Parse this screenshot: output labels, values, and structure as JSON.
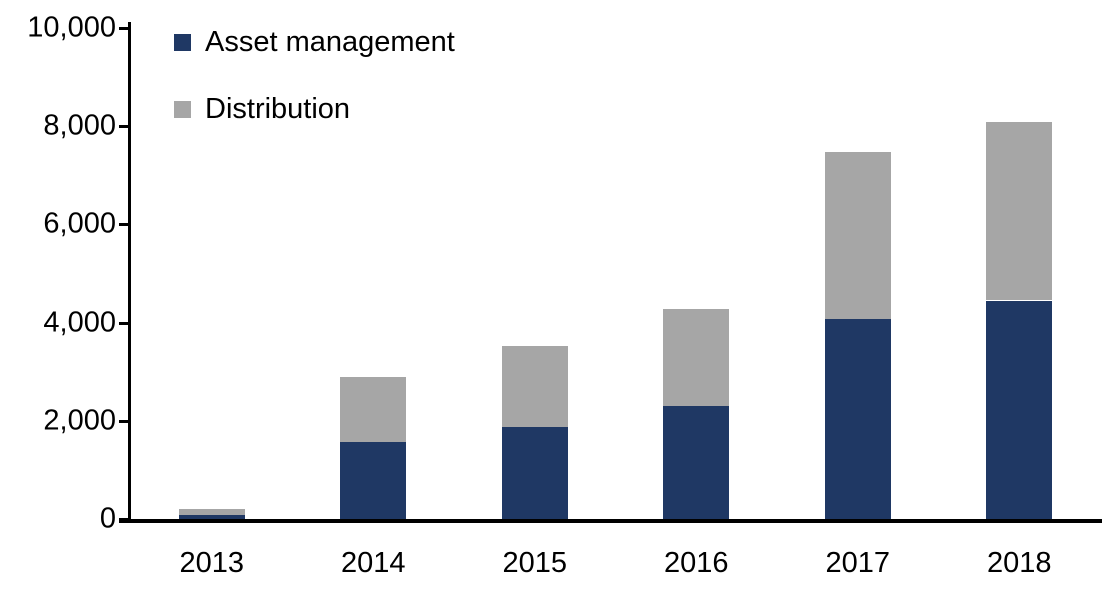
{
  "chart_data": {
    "type": "bar",
    "stacked": true,
    "title": "",
    "xlabel": "",
    "ylabel": "",
    "categories": [
      "2013",
      "2014",
      "2015",
      "2016",
      "2017",
      "2018"
    ],
    "series": [
      {
        "name": "Asset management",
        "color": "#1F3864",
        "values": [
          80,
          1570,
          1880,
          2300,
          4080,
          4450
        ]
      },
      {
        "name": "Distribution",
        "color": "#A6A6A6",
        "values": [
          120,
          1330,
          1650,
          1980,
          3390,
          3630
        ]
      }
    ],
    "totals": [
      200,
      2900,
      3530,
      4280,
      7470,
      8080
    ],
    "ylim": [
      0,
      10000
    ],
    "ytick_step": 2000,
    "ytick_labels": [
      "0",
      "2,000",
      "4,000",
      "6,000",
      "8,000",
      "10,000"
    ],
    "grid": false,
    "legend_position": "top-left-inside"
  },
  "colors": {
    "axis": "#000000",
    "text": "#000000",
    "background": "#FFFFFF",
    "asset_management": "#1F3864",
    "distribution": "#A6A6A6"
  }
}
